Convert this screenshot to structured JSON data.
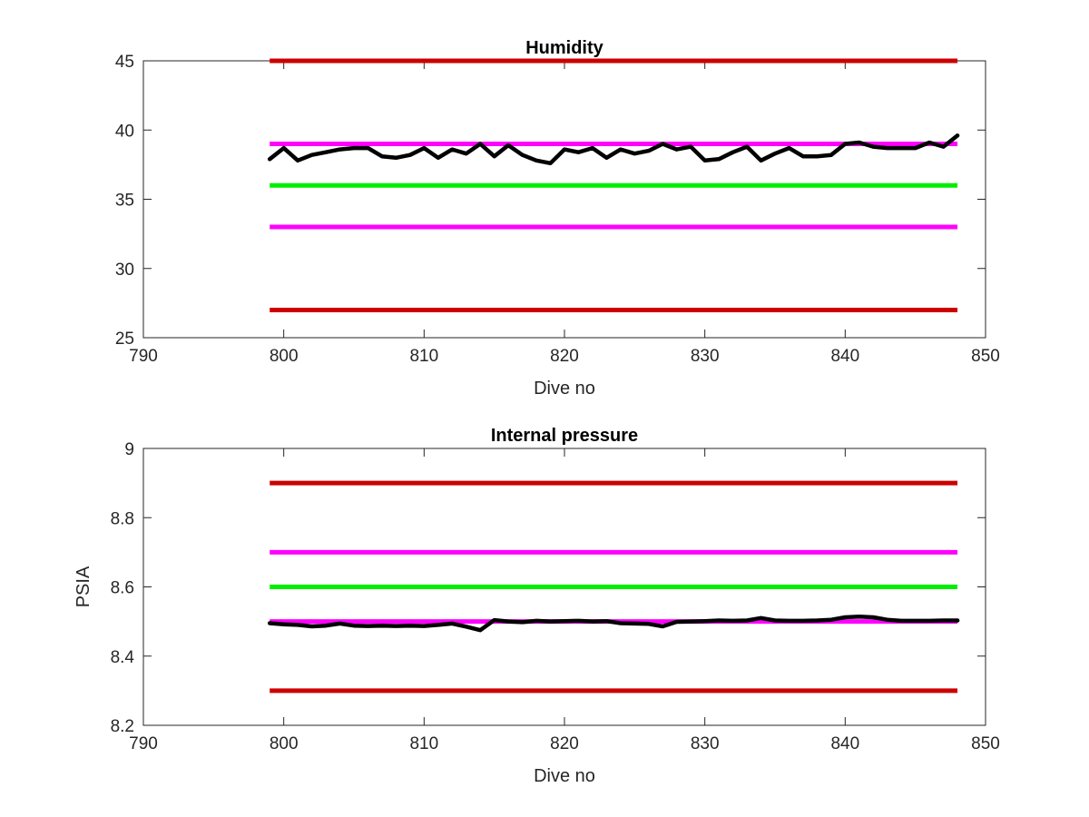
{
  "colors": {
    "limit_red": "#cc0000",
    "limit_magenta": "#ff00ff",
    "target_green": "#00ee00",
    "data_black": "#000000",
    "axis": "#262626"
  },
  "chart_data": [
    {
      "type": "line",
      "title": "Humidity",
      "xlabel": "Dive no",
      "ylabel": "",
      "xlim": [
        790,
        850
      ],
      "ylim": [
        25,
        45
      ],
      "xticks": [
        790,
        800,
        810,
        820,
        830,
        840,
        850
      ],
      "yticks": [
        25,
        30,
        35,
        40,
        45
      ],
      "xtick_labels": [
        "790",
        "800",
        "810",
        "820",
        "830",
        "840",
        "850"
      ],
      "ytick_labels": [
        "25",
        "30",
        "35",
        "40",
        "45"
      ],
      "grid": false,
      "legend": "none",
      "limit_lines": [
        {
          "y": 45,
          "x": [
            799,
            848
          ],
          "color": "#cc0000"
        },
        {
          "y": 39,
          "x": [
            799,
            848
          ],
          "color": "#ff00ff"
        },
        {
          "y": 36,
          "x": [
            799,
            848
          ],
          "color": "#00ee00"
        },
        {
          "y": 33,
          "x": [
            799,
            848
          ],
          "color": "#ff00ff"
        },
        {
          "y": 27,
          "x": [
            799,
            848
          ],
          "color": "#cc0000"
        }
      ],
      "series": [
        {
          "color": "#000000",
          "x": [
            799,
            800,
            801,
            802,
            803,
            804,
            805,
            806,
            807,
            808,
            809,
            810,
            811,
            812,
            813,
            814,
            815,
            816,
            817,
            818,
            819,
            820,
            821,
            822,
            823,
            824,
            825,
            826,
            827,
            828,
            829,
            830,
            831,
            832,
            833,
            834,
            835,
            836,
            837,
            838,
            839,
            840,
            841,
            842,
            843,
            844,
            845,
            846,
            847,
            848
          ],
          "values": [
            37.9,
            38.7,
            37.8,
            38.2,
            38.4,
            38.6,
            38.7,
            38.7,
            38.1,
            38.0,
            38.2,
            38.7,
            38.0,
            38.6,
            38.3,
            39.0,
            38.1,
            38.9,
            38.2,
            37.8,
            37.6,
            38.6,
            38.4,
            38.7,
            38.0,
            38.6,
            38.3,
            38.5,
            39.0,
            38.6,
            38.8,
            37.8,
            37.9,
            38.4,
            38.8,
            37.8,
            38.3,
            38.7,
            38.1,
            38.1,
            38.2,
            39.0,
            39.1,
            38.8,
            38.7,
            38.7,
            38.7,
            39.1,
            38.8,
            39.6
          ]
        }
      ]
    },
    {
      "type": "line",
      "title": "Internal pressure",
      "xlabel": "Dive no",
      "ylabel": "PSIA",
      "xlim": [
        790,
        850
      ],
      "ylim": [
        8.2,
        9
      ],
      "xticks": [
        790,
        800,
        810,
        820,
        830,
        840,
        850
      ],
      "yticks": [
        8.2,
        8.4,
        8.6,
        8.8,
        9
      ],
      "xtick_labels": [
        "790",
        "800",
        "810",
        "820",
        "830",
        "840",
        "850"
      ],
      "ytick_labels": [
        "8.2",
        "8.4",
        "8.6",
        "8.8",
        "9"
      ],
      "grid": false,
      "legend": "none",
      "limit_lines": [
        {
          "y": 8.9,
          "x": [
            799,
            848
          ],
          "color": "#cc0000"
        },
        {
          "y": 8.7,
          "x": [
            799,
            848
          ],
          "color": "#ff00ff"
        },
        {
          "y": 8.6,
          "x": [
            799,
            848
          ],
          "color": "#00ee00"
        },
        {
          "y": 8.5,
          "x": [
            799,
            848
          ],
          "color": "#ff00ff"
        },
        {
          "y": 8.3,
          "x": [
            799,
            848
          ],
          "color": "#cc0000"
        }
      ],
      "series": [
        {
          "color": "#000000",
          "x": [
            799,
            800,
            801,
            802,
            803,
            804,
            805,
            806,
            807,
            808,
            809,
            810,
            811,
            812,
            813,
            814,
            815,
            816,
            817,
            818,
            819,
            820,
            821,
            822,
            823,
            824,
            825,
            826,
            827,
            828,
            829,
            830,
            831,
            832,
            833,
            834,
            835,
            836,
            837,
            838,
            839,
            840,
            841,
            842,
            843,
            844,
            845,
            846,
            847,
            848
          ],
          "values": [
            8.495,
            8.492,
            8.49,
            8.486,
            8.488,
            8.494,
            8.488,
            8.487,
            8.488,
            8.487,
            8.488,
            8.487,
            8.49,
            8.494,
            8.485,
            8.475,
            8.504,
            8.5,
            8.498,
            8.502,
            8.5,
            8.501,
            8.502,
            8.5,
            8.501,
            8.495,
            8.494,
            8.493,
            8.486,
            8.499,
            8.5,
            8.501,
            8.503,
            8.502,
            8.503,
            8.51,
            8.503,
            8.502,
            8.502,
            8.503,
            8.505,
            8.512,
            8.514,
            8.512,
            8.505,
            8.502,
            8.502,
            8.502,
            8.503,
            8.503
          ]
        }
      ]
    }
  ]
}
